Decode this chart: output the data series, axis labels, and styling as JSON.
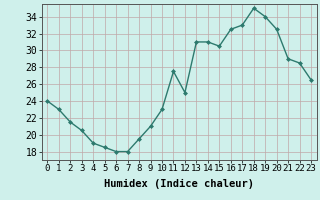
{
  "x": [
    0,
    1,
    2,
    3,
    4,
    5,
    6,
    7,
    8,
    9,
    10,
    11,
    12,
    13,
    14,
    15,
    16,
    17,
    18,
    19,
    20,
    21,
    22,
    23
  ],
  "y": [
    24,
    23,
    21.5,
    20.5,
    19,
    18.5,
    18,
    18,
    19.5,
    21,
    23,
    27.5,
    25,
    31,
    31,
    30.5,
    32.5,
    33,
    35,
    34,
    32.5,
    29,
    28.5,
    26.5
  ],
  "line_color": "#2d7a6e",
  "marker": "D",
  "marker_size": 2.0,
  "line_width": 1.0,
  "bg_color": "#cff0eb",
  "grid_color": "#c0a8a8",
  "xlabel": "Humidex (Indice chaleur)",
  "xlim": [
    -0.5,
    23.5
  ],
  "ylim": [
    17,
    35.5
  ],
  "yticks": [
    18,
    20,
    22,
    24,
    26,
    28,
    30,
    32,
    34
  ],
  "xticks": [
    0,
    1,
    2,
    3,
    4,
    5,
    6,
    7,
    8,
    9,
    10,
    11,
    12,
    13,
    14,
    15,
    16,
    17,
    18,
    19,
    20,
    21,
    22,
    23
  ],
  "xlabel_fontsize": 7.5,
  "tick_fontsize": 6.5,
  "ytick_fontsize": 7.0
}
